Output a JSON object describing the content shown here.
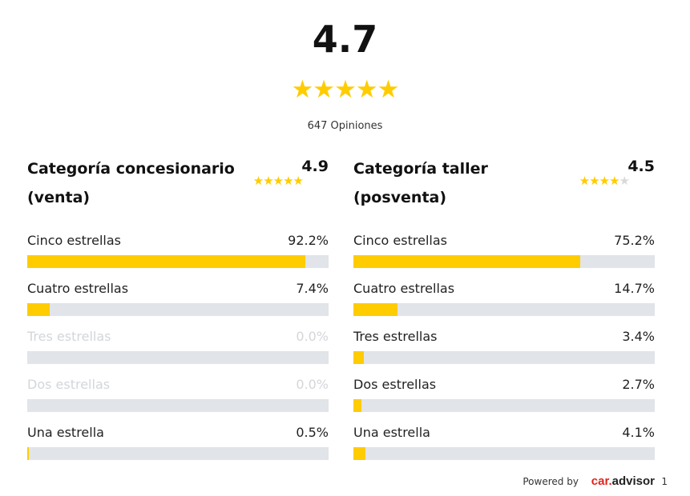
{
  "overall": {
    "score": "4.7",
    "stars": "★★★★★",
    "count_label": "647 Opiniones"
  },
  "categories": [
    {
      "title": "Categoría concesionario (venta)",
      "score": "4.9",
      "stars_filled": "★★★★★",
      "stars_empty": "",
      "rows": [
        {
          "label": "Cinco estrellas",
          "pct": "92.2%",
          "value": 92.2
        },
        {
          "label": "Cuatro estrellas",
          "pct": "7.4%",
          "value": 7.4
        },
        {
          "label": "Tres estrellas",
          "pct": "0.0%",
          "value": 0
        },
        {
          "label": "Dos estrellas",
          "pct": "0.0%",
          "value": 0
        },
        {
          "label": "Una estrella",
          "pct": "0.5%",
          "value": 0.5
        }
      ]
    },
    {
      "title": "Categoría taller (posventa)",
      "score": "4.5",
      "stars_filled": "★★★★",
      "stars_empty": "★",
      "rows": [
        {
          "label": "Cinco estrellas",
          "pct": "75.2%",
          "value": 75.2
        },
        {
          "label": "Cuatro estrellas",
          "pct": "14.7%",
          "value": 14.7
        },
        {
          "label": "Tres estrellas",
          "pct": "3.4%",
          "value": 3.4
        },
        {
          "label": "Dos estrellas",
          "pct": "2.7%",
          "value": 2.7
        },
        {
          "label": "Una estrella",
          "pct": "4.1%",
          "value": 4.1
        }
      ]
    }
  ],
  "footer": {
    "powered_label": "Powered by",
    "logo_car": "car.",
    "logo_advisor": "advisor",
    "logo_suffix": "1"
  },
  "colors": {
    "bar_fill": "#ffcc00",
    "bar_track": "#e1e4e8",
    "disabled_text": "#d3d6da",
    "logo_red": "#e2231a"
  }
}
